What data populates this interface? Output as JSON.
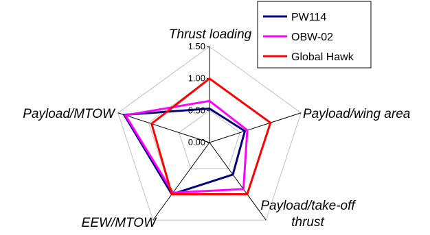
{
  "chart_data": {
    "type": "radar",
    "axes": [
      {
        "label_lines": [
          "Thrust loading"
        ]
      },
      {
        "label_lines": [
          "Payload/wing area"
        ]
      },
      {
        "label_lines": [
          "Payload/take-off",
          "thrust"
        ]
      },
      {
        "label_lines": [
          "EEW/MTOW"
        ]
      },
      {
        "label_lines": [
          "Payload/MTOW"
        ]
      }
    ],
    "ticks": [
      "0.00",
      "0.50",
      "1.00",
      "1.50"
    ],
    "tick_values": [
      0,
      0.5,
      1.0,
      1.5
    ],
    "rmax": 1.5,
    "grid": true,
    "legend_position": "top-right",
    "series": [
      {
        "name": "PW114",
        "values": [
          0.53,
          0.58,
          0.62,
          1.0,
          1.4
        ]
      },
      {
        "name": "OBW-02",
        "values": [
          0.65,
          0.62,
          0.9,
          0.97,
          1.38
        ]
      },
      {
        "name": "Global Hawk",
        "values": [
          1.0,
          1.0,
          1.0,
          1.0,
          0.95
        ]
      }
    ],
    "colors": {
      "PW114": "#000080",
      "OBW-02": "#ff00ff",
      "Global Hawk": "#ff0000",
      "grid": "#bfbfbf",
      "axis": "#000000"
    }
  }
}
